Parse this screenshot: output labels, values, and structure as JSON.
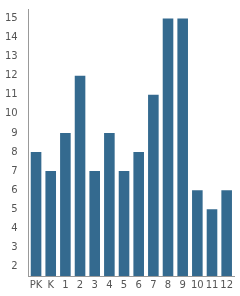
{
  "chart_data": {
    "type": "bar",
    "categories": [
      "PK",
      "K",
      "1",
      "2",
      "3",
      "4",
      "5",
      "6",
      "7",
      "8",
      "9",
      "10",
      "11",
      "12"
    ],
    "values": [
      8,
      7,
      9,
      12,
      7,
      9,
      7,
      8,
      11,
      15,
      15,
      6,
      5,
      6
    ],
    "color": "#346a8f",
    "ylim": [
      1.5,
      15.5
    ],
    "yticks": [
      2,
      3,
      4,
      5,
      6,
      7,
      8,
      9,
      10,
      11,
      12,
      13,
      14,
      15
    ],
    "grid": false
  }
}
